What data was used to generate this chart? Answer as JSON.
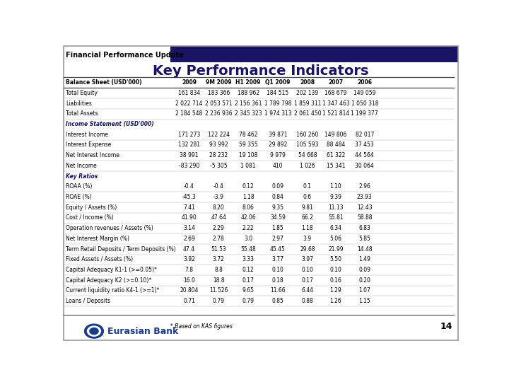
{
  "title": "Key Performance Indicators",
  "header_label": "Financial Performance Update",
  "columns": [
    "Balance Sheet (USD'000)",
    "2009",
    "9M 2009",
    "H1 2009",
    "Q1 2009",
    "2008",
    "2007",
    "2006"
  ],
  "rows": [
    [
      "Total Equity",
      "161 834",
      "183 366",
      "188 962",
      "184 515",
      "202 139",
      "168 679",
      "149 059"
    ],
    [
      "Liabilities",
      "2 022 714",
      "2 053 571",
      "2 156 361",
      "1 789 798",
      "1 859 311",
      "1 347 463",
      "1 050 318"
    ],
    [
      "Total Assets",
      "2 184 548",
      "2 236 936",
      "2 345 323",
      "1 974 313",
      "2 061 450",
      "1 521 814",
      "1 199 377"
    ],
    [
      "Income Statement (USD'000)",
      "",
      "",
      "",
      "",
      "",
      "",
      ""
    ],
    [
      "Interest Income",
      "171 273",
      "122 224",
      "78 462",
      "39 871",
      "160 260",
      "149 806",
      "82 017"
    ],
    [
      "Interest Expense",
      "132 281",
      "93 992",
      "59 355",
      "29 892",
      "105 593",
      "88 484",
      "37 453"
    ],
    [
      "Net Interest Income",
      "38 991",
      "28 232",
      "19 108",
      "9 979",
      "54 668",
      "61 322",
      "44 564"
    ],
    [
      "Net Income",
      "-83 290",
      "-5 305",
      "1 081",
      "410",
      "1 026",
      "15 341",
      "30 064"
    ],
    [
      "Key Ratios",
      "",
      "",
      "",
      "",
      "",
      "",
      ""
    ],
    [
      "ROAA (%)",
      "-0.4",
      "-0.4",
      "0.12",
      "0.09",
      "0.1",
      "1.10",
      "2.96"
    ],
    [
      "ROAE (%)",
      "-45.3",
      "-3.9",
      "1.18",
      "0.84",
      "0.6",
      "9.39",
      "23.93"
    ],
    [
      "Equity / Assets (%)",
      "7.41",
      "8.20",
      "8.06",
      "9.35",
      "9.81",
      "11.13",
      "12.43"
    ],
    [
      "Cost / Income (%)",
      "41.90",
      "47.64",
      "42.06",
      "34.59",
      "66.2",
      "55.81",
      "58.88"
    ],
    [
      "Operation revenues / Assets (%)",
      "3.14",
      "2.29",
      "2.22",
      "1.85",
      "1.18",
      "6.34",
      "6.83"
    ],
    [
      "Net Interest Margin (%)",
      "2.69",
      "2.78",
      "3.0",
      "2.97",
      "3.9",
      "5.06",
      "5.85"
    ],
    [
      "Term Retail Deposits / Term Deposits (%)",
      "47.4",
      "51.53",
      "55.48",
      "45.45",
      "29.68",
      "21.99",
      "14.48"
    ],
    [
      "Fixed Assets / Assets (%)",
      "3.92",
      "3.72",
      "3.33",
      "3.77",
      "3.97",
      "5.50",
      "1.49"
    ],
    [
      "Capital Adequacy K1-1 (>=0.05)*",
      "7.8",
      "8.8",
      "0.12",
      "0.10",
      "0.10",
      "0.10",
      "0.09"
    ],
    [
      "Capital Adequacy K2 (>=0.10)*",
      "16.0",
      "18.8",
      "0.17",
      "0.18",
      "0.17",
      "0.16",
      "0.20"
    ],
    [
      "Current liquidity ratio K4-1 (>=1)*",
      "20.804",
      "11.526",
      "9.65",
      "11.66",
      "6.44",
      "1.29",
      "1.07"
    ],
    [
      "Loans / Deposits",
      "0.71",
      "0.79",
      "0.79",
      "0.85",
      "0.88",
      "1.26",
      "1.15"
    ]
  ],
  "section_rows": [
    3,
    8
  ],
  "footnote": "* Based on KAS figures",
  "page_number": "14",
  "header_bg": "#1a1464",
  "title_color": "#1a1464",
  "section_label_color": "#1a1464",
  "line_color": "#444444",
  "light_line_color": "#aaaaaa",
  "text_color": "#000000",
  "bg_color": "#ffffff",
  "logo_color": "#1a3a8a",
  "logo_text": "Eurasian Bank"
}
